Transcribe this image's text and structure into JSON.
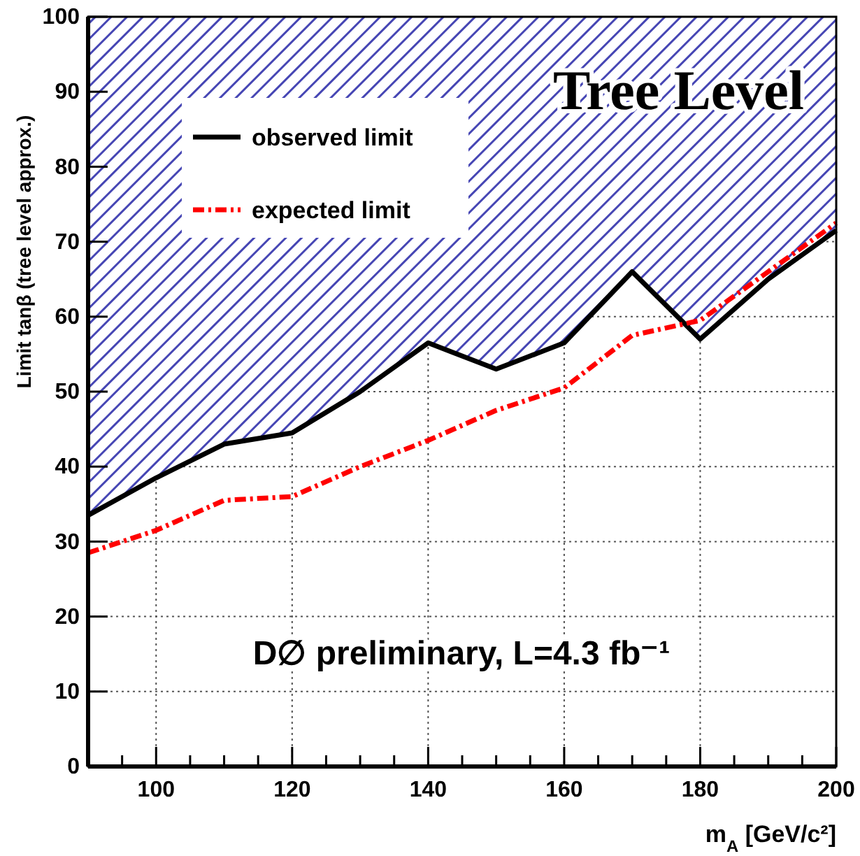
{
  "chart_data": {
    "type": "line",
    "xlabel": "m$_{A}$ [GeV/c²]",
    "ylabel": "Limit tanβ (tree level approx.)",
    "x": [
      90,
      100,
      110,
      120,
      130,
      140,
      150,
      160,
      170,
      180,
      190,
      200
    ],
    "series": [
      {
        "name": "observed limit",
        "color": "#000000",
        "line_style": "solid",
        "values": [
          33.5,
          38.5,
          43,
          44.5,
          50,
          56.5,
          53,
          56.5,
          66,
          57,
          65,
          71.5
        ],
        "lower": [
          33.5,
          38.5,
          43,
          44.5,
          50,
          56.5,
          53,
          56.5,
          66,
          57,
          65,
          71.5
        ],
        "upper": [
          100,
          100,
          100,
          100,
          100,
          100,
          100,
          100,
          100,
          100,
          100,
          100
        ]
      },
      {
        "name": "expected limit",
        "color": "#ff0000",
        "line_style": "dashed",
        "values": [
          28.5,
          31.5,
          35.5,
          36,
          40,
          43.5,
          47.5,
          50.5,
          57.5,
          59.5,
          66,
          72.5
        ]
      }
    ],
    "xlim": [
      90,
      200
    ],
    "ylim": [
      0,
      100
    ],
    "xticks": [
      {
        "value": 90,
        "label": null
      },
      {
        "value": 95,
        "label": null
      },
      100,
      {
        "value": 105,
        "label": null
      },
      {
        "value": 110,
        "label": null
      },
      {
        "value": 115,
        "label": null
      },
      120,
      {
        "value": 125,
        "label": null
      },
      {
        "value": 130,
        "label": null
      },
      {
        "value": 135,
        "label": null
      },
      140,
      {
        "value": 145,
        "label": null
      },
      {
        "value": 150,
        "label": null
      },
      {
        "value": 155,
        "label": null
      },
      160,
      {
        "value": 165,
        "label": null
      },
      {
        "value": 170,
        "label": null
      },
      {
        "value": 175,
        "label": null
      },
      180,
      {
        "value": 185,
        "label": null
      },
      {
        "value": 190,
        "label": null
      },
      {
        "value": 195,
        "label": null
      },
      200
    ],
    "yticks": [
      0,
      10,
      20,
      30,
      40,
      50,
      60,
      70,
      80,
      90,
      100
    ],
    "grid": true,
    "legend": "top left",
    "marker": "none",
    "annotations": [
      "Tree Level",
      "D∅ preliminary, L=4.3 fb⁻¹"
    ]
  }
}
